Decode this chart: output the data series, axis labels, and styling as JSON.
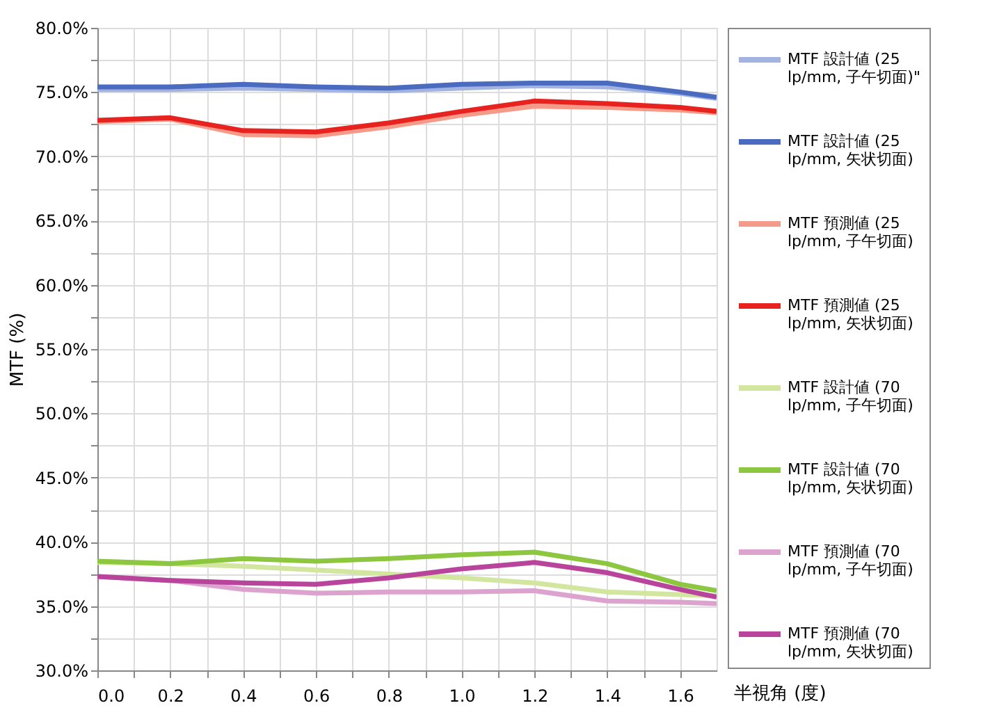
{
  "chart_data": {
    "type": "line",
    "xlabel": "半視角 (度)",
    "ylabel": "MTF (%)",
    "x": [
      0,
      0.2,
      0.4,
      0.6,
      0.8,
      1.0,
      1.2,
      1.4,
      1.6,
      1.7
    ],
    "xlim": [
      0,
      1.7
    ],
    "xticks": [
      {
        "value": 0,
        "label": "0.0"
      },
      {
        "value": 0.1,
        "label": null
      },
      {
        "value": 0.2,
        "label": "0.2"
      },
      {
        "value": 0.3,
        "label": null
      },
      {
        "value": 0.4,
        "label": "0.4"
      },
      {
        "value": 0.5,
        "label": null
      },
      {
        "value": 0.6,
        "label": "0.6"
      },
      {
        "value": 0.7,
        "label": null
      },
      {
        "value": 0.8,
        "label": "0.8"
      },
      {
        "value": 0.9,
        "label": null
      },
      {
        "value": 1.0,
        "label": "1.0"
      },
      {
        "value": 1.1,
        "label": null
      },
      {
        "value": 1.2,
        "label": "1.2"
      },
      {
        "value": 1.3,
        "label": null
      },
      {
        "value": 1.4,
        "label": "1.4"
      },
      {
        "value": 1.5,
        "label": null
      },
      {
        "value": 1.6,
        "label": "1.6"
      }
    ],
    "ylim": [
      30,
      80
    ],
    "yticks": [
      {
        "value": 30,
        "label": "30.0%"
      },
      {
        "value": 32.5,
        "label": null
      },
      {
        "value": 35,
        "label": "35.0%"
      },
      {
        "value": 37.5,
        "label": null
      },
      {
        "value": 40,
        "label": "40.0%"
      },
      {
        "value": 42.5,
        "label": null
      },
      {
        "value": 45,
        "label": "45.0%"
      },
      {
        "value": 47.5,
        "label": null
      },
      {
        "value": 50,
        "label": "50.0%"
      },
      {
        "value": 52.5,
        "label": null
      },
      {
        "value": 55,
        "label": "55.0%"
      },
      {
        "value": 57.5,
        "label": null
      },
      {
        "value": 60,
        "label": "60.0%"
      },
      {
        "value": 62.5,
        "label": null
      },
      {
        "value": 65,
        "label": "65.0%"
      },
      {
        "value": 67.5,
        "label": null
      },
      {
        "value": 70,
        "label": "70.0%"
      },
      {
        "value": 72.5,
        "label": null
      },
      {
        "value": 75,
        "label": "75.0%"
      },
      {
        "value": 77.5,
        "label": null
      },
      {
        "value": 80,
        "label": "80.0%"
      }
    ],
    "grid": true,
    "legend": "right",
    "marker": "none",
    "line_style": "solid",
    "series": [
      {
        "name": "MTF 設計値 (25 lp/mm, 子午切面)\"",
        "color": "#a3b3e0",
        "values": [
          75.2,
          75.2,
          75.3,
          75.2,
          75.1,
          75.3,
          75.5,
          75.4,
          74.9,
          74.5
        ]
      },
      {
        "name": "MTF 設計値 (25 lp/mm, 矢状切面)",
        "color": "#4a6bbf",
        "values": [
          75.4,
          75.4,
          75.6,
          75.4,
          75.3,
          75.6,
          75.7,
          75.7,
          75.0,
          74.6
        ]
      },
      {
        "name": "MTF 預測値 (25 lp/mm, 子午切面)",
        "color": "#f59a88",
        "values": [
          72.7,
          72.9,
          71.7,
          71.6,
          72.3,
          73.2,
          73.9,
          73.8,
          73.6,
          73.4
        ]
      },
      {
        "name": "MTF 預測値 (25 lp/mm, 矢状切面)",
        "color": "#e8231f",
        "values": [
          72.8,
          73.0,
          72.0,
          71.9,
          72.6,
          73.5,
          74.3,
          74.1,
          73.8,
          73.5
        ]
      },
      {
        "name": "MTF 設計値 (70 lp/mm, 子午切面)",
        "color": "#d3e6a0",
        "values": [
          38.4,
          38.3,
          38.1,
          37.8,
          37.5,
          37.2,
          36.8,
          36.1,
          35.9,
          35.8
        ]
      },
      {
        "name": "MTF 設計値 (70 lp/mm, 矢状切面)",
        "color": "#8dc63f",
        "values": [
          38.5,
          38.3,
          38.7,
          38.5,
          38.7,
          39.0,
          39.2,
          38.3,
          36.7,
          36.2
        ]
      },
      {
        "name": "MTF 預測値 (70 lp/mm, 子午切面)",
        "color": "#dca3cf",
        "values": [
          37.3,
          37.0,
          36.3,
          36.0,
          36.1,
          36.1,
          36.2,
          35.4,
          35.3,
          35.2
        ]
      },
      {
        "name": "MTF 預測値 (70 lp/mm, 矢状切面)",
        "color": "#b8449b",
        "values": [
          37.3,
          37.0,
          36.8,
          36.7,
          37.2,
          37.9,
          38.4,
          37.6,
          36.3,
          35.7
        ]
      }
    ]
  }
}
